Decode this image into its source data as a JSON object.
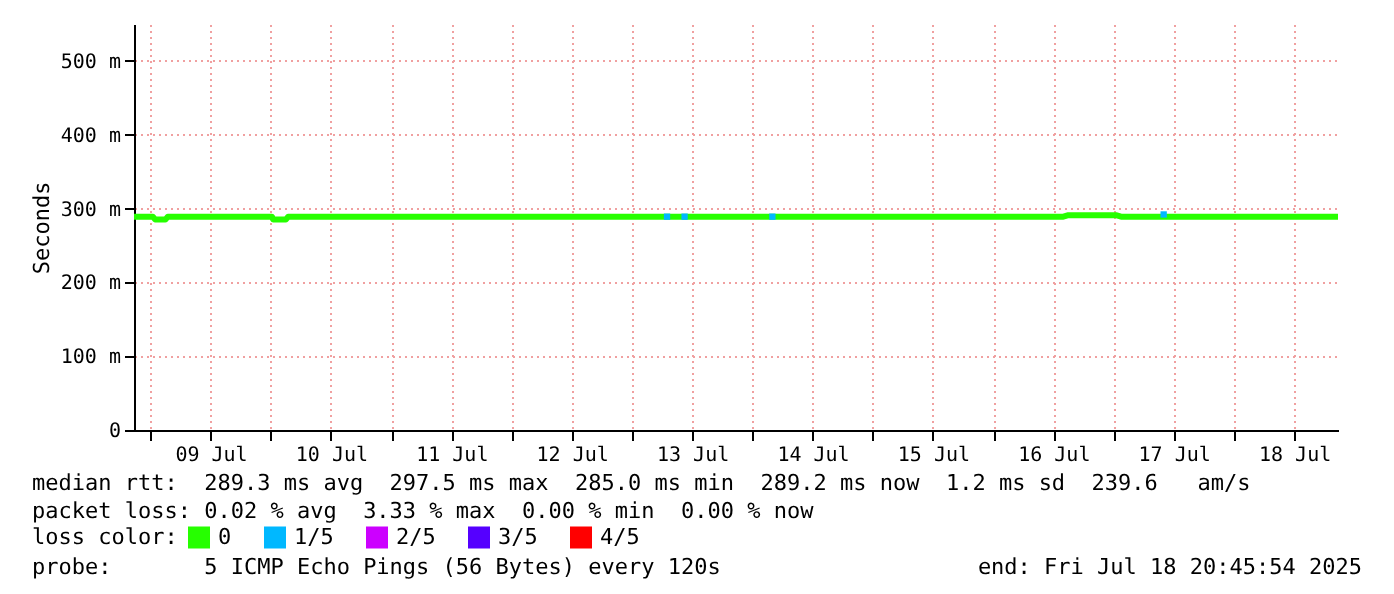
{
  "chart_data": {
    "type": "line",
    "ylabel": "Seconds",
    "legend_title": "loss color:",
    "legend": "bottom",
    "grid": true,
    "xlim": [
      "2025-07-08T20:45",
      "2025-07-18T20:45"
    ],
    "xticks": [
      {
        "value": "2025-07-09T00:00",
        "label": null
      },
      {
        "value": "2025-07-09T12:00",
        "label": "09 Jul"
      },
      {
        "value": "2025-07-10T00:00",
        "label": null
      },
      {
        "value": "2025-07-10T12:00",
        "label": "10 Jul"
      },
      {
        "value": "2025-07-11T00:00",
        "label": null
      },
      {
        "value": "2025-07-11T12:00",
        "label": "11 Jul"
      },
      {
        "value": "2025-07-12T00:00",
        "label": null
      },
      {
        "value": "2025-07-12T12:00",
        "label": "12 Jul"
      },
      {
        "value": "2025-07-13T00:00",
        "label": null
      },
      {
        "value": "2025-07-13T12:00",
        "label": "13 Jul"
      },
      {
        "value": "2025-07-14T00:00",
        "label": null
      },
      {
        "value": "2025-07-14T12:00",
        "label": "14 Jul"
      },
      {
        "value": "2025-07-15T00:00",
        "label": null
      },
      {
        "value": "2025-07-15T12:00",
        "label": "15 Jul"
      },
      {
        "value": "2025-07-16T00:00",
        "label": null
      },
      {
        "value": "2025-07-16T12:00",
        "label": "16 Jul"
      },
      {
        "value": "2025-07-17T00:00",
        "label": null
      },
      {
        "value": "2025-07-17T12:00",
        "label": "17 Jul"
      },
      {
        "value": "2025-07-18T00:00",
        "label": null
      },
      {
        "value": "2025-07-18T12:00",
        "label": "18 Jul"
      }
    ],
    "ylim": [
      0,
      550
    ],
    "yticks": [
      0,
      {
        "value": 100,
        "label": "100 m"
      },
      {
        "value": 200,
        "label": "200 m"
      },
      {
        "value": 300,
        "label": "300 m"
      },
      {
        "value": 400,
        "label": "400 m"
      },
      {
        "value": 500,
        "label": "500 m"
      }
    ],
    "series": [
      {
        "name": "0",
        "color": "#26ff00",
        "x": [
          "2025-07-08T20:45",
          "2025-07-09T00:30",
          "2025-07-09T01:00",
          "2025-07-09T03:00",
          "2025-07-09T03:30",
          "2025-07-09T12:00",
          "2025-07-10T00:15",
          "2025-07-10T00:30",
          "2025-07-10T03:00",
          "2025-07-10T03:30",
          "2025-07-10T12:00",
          "2025-07-11T00:00",
          "2025-07-11T12:00",
          "2025-07-12T00:00",
          "2025-07-12T12:00",
          "2025-07-13T00:00",
          "2025-07-13T12:00",
          "2025-07-14T00:00",
          "2025-07-14T12:00",
          "2025-07-15T00:00",
          "2025-07-15T12:00",
          "2025-07-16T00:00",
          "2025-07-16T14:00",
          "2025-07-16T15:00",
          "2025-07-17T00:30",
          "2025-07-17T01:30",
          "2025-07-17T12:00",
          "2025-07-18T00:00",
          "2025-07-18T12:00",
          "2025-07-18T20:45"
        ],
        "values": [
          289,
          289,
          285,
          285,
          289,
          289,
          289,
          285,
          285,
          289,
          289,
          289,
          289,
          289,
          289,
          289,
          289,
          289,
          289,
          289,
          289,
          289,
          289,
          291,
          291,
          289,
          289,
          289,
          289,
          289
        ]
      },
      {
        "name": "1/5",
        "color": "#00b8ff",
        "type": "scatter",
        "marker": "square",
        "x": [
          "2025-07-13T07:00",
          "2025-07-13T10:30",
          "2025-07-14T04:00",
          "2025-07-17T10:00"
        ],
        "values": [
          289,
          289,
          289,
          292
        ]
      },
      {
        "name": "2/5",
        "color": "#cc00ff"
      },
      {
        "name": "3/5",
        "color": "#5500ff"
      },
      {
        "name": "4/5",
        "color": "#ff0000"
      }
    ],
    "annotations": [
      "median rtt:  289.3 ms avg  297.5 ms max  285.0 ms min  289.2 ms now  1.2 ms sd  239.6   am/s",
      "packet loss: 0.02 % avg  3.33 % max  0.00 % min  0.00 % now",
      "probe:       5 ICMP Echo Pings (56 Bytes) every 120s",
      "end: Fri Jul 18 20:45:54 2025"
    ]
  }
}
